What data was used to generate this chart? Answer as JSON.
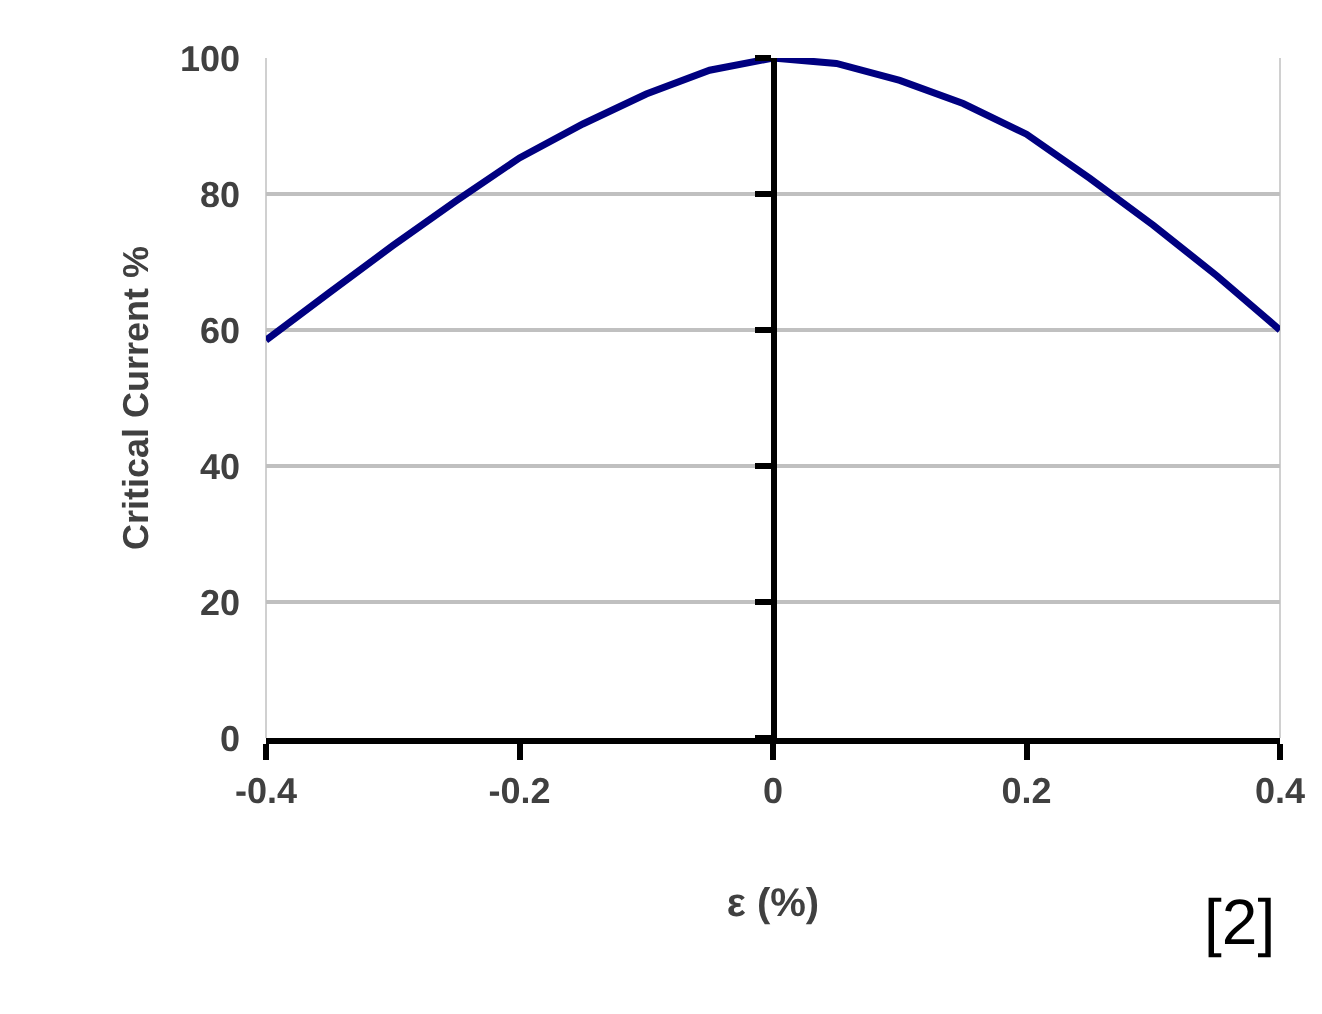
{
  "chart_data": {
    "type": "line",
    "ylabel": "Critical Current %",
    "xlabel": "ε (%)",
    "annotations": [
      "[2]"
    ],
    "x": [
      -0.4,
      -0.35,
      -0.3,
      -0.25,
      -0.2,
      -0.15,
      -0.1,
      -0.05,
      0,
      0.05,
      0.1,
      0.15,
      0.2,
      0.25,
      0.3,
      0.35,
      0.4
    ],
    "series": [
      {
        "color": "#000080",
        "values": [
          58.5,
          65.5,
          72.4,
          79,
          85.3,
          90.3,
          94.7,
          98.2,
          100,
          99.2,
          96.7,
          93.3,
          88.8,
          82.3,
          75.4,
          68,
          60
        ]
      }
    ],
    "xlim": [
      -0.4,
      0.4
    ],
    "xticks": [
      -0.4,
      -0.2,
      0,
      0.2,
      0.4
    ],
    "ylim": [
      0,
      100
    ],
    "yticks": [
      0,
      20,
      40,
      60,
      80,
      100
    ],
    "grid": "y",
    "marker": "none",
    "line_style": "solid"
  }
}
